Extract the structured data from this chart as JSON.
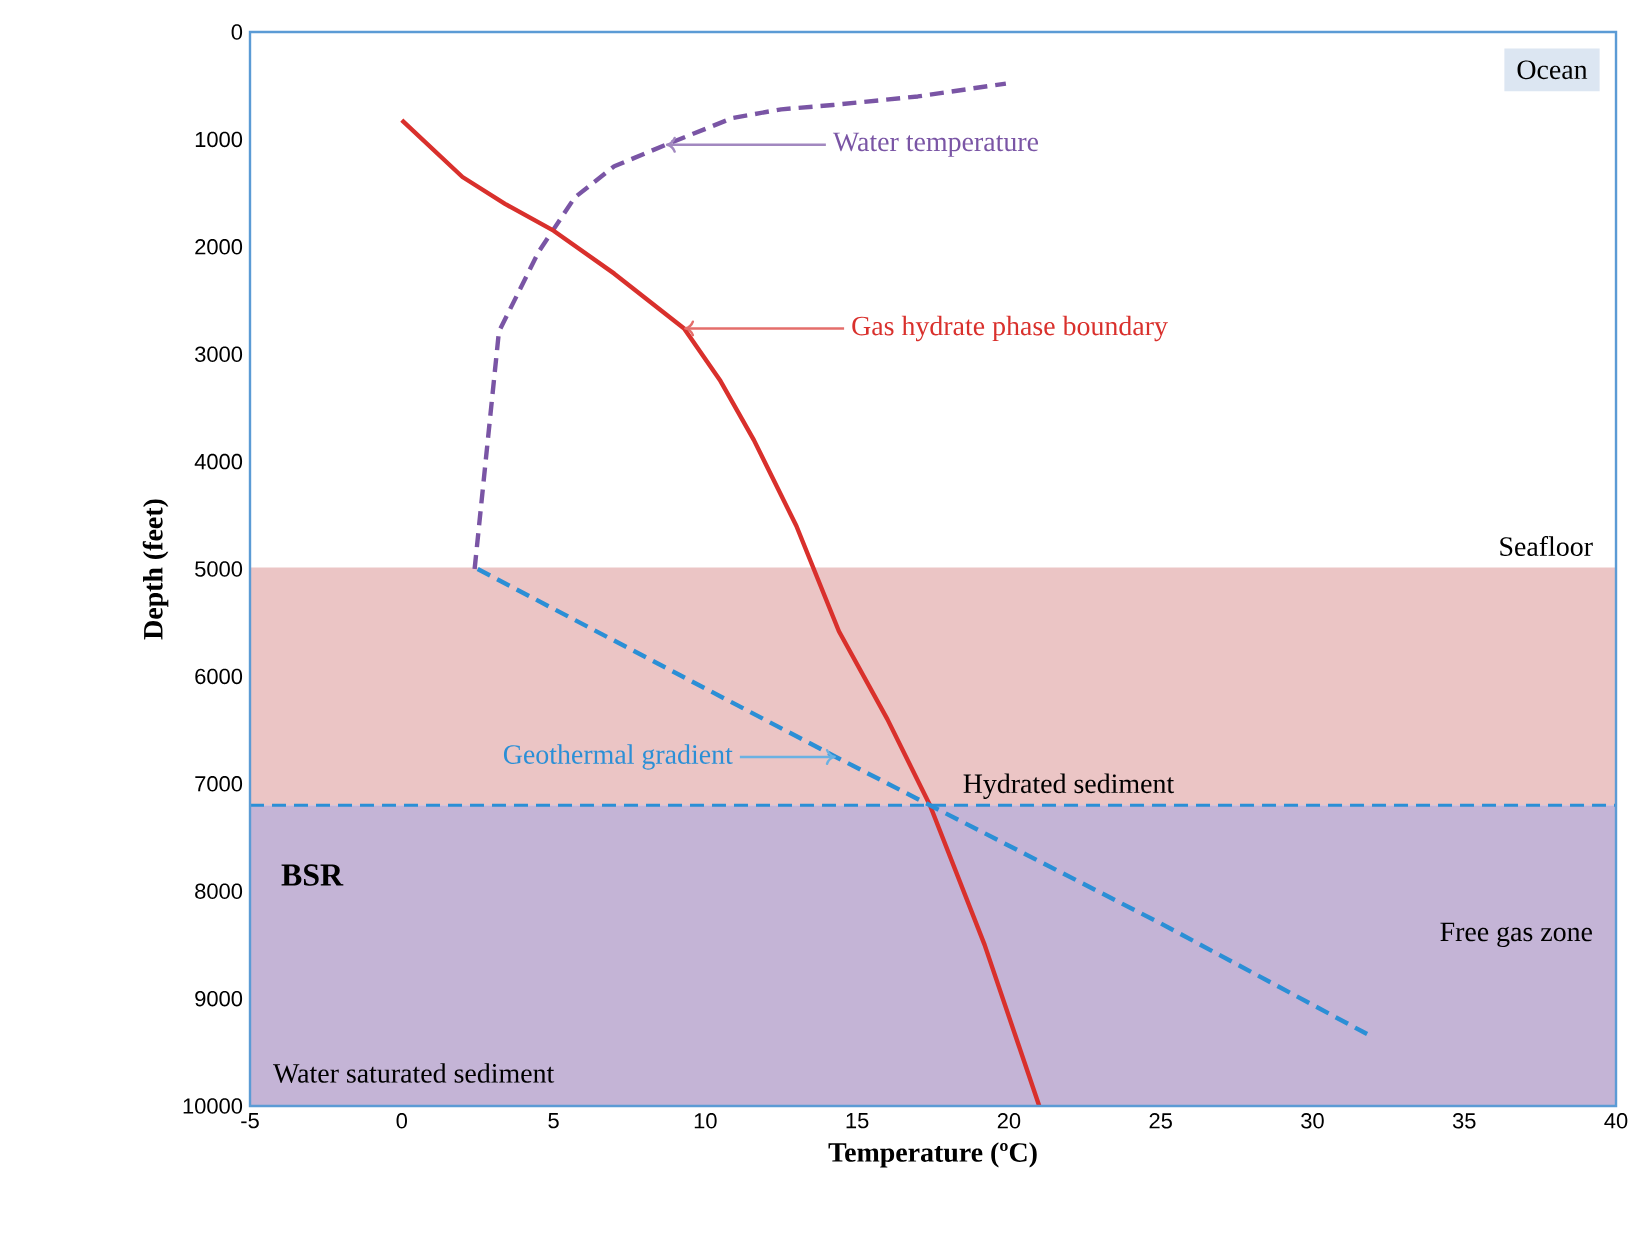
{
  "chart_data": {
    "type": "line",
    "xlabel": "Temperature (ºC)",
    "ylabel": "Depth (feet)",
    "xlim": [
      -5,
      40
    ],
    "ylim": [
      10000,
      0
    ],
    "xticks": [
      -5,
      0,
      5,
      10,
      15,
      20,
      25,
      30,
      35,
      40
    ],
    "yticks": [
      0,
      1000,
      2000,
      3000,
      4000,
      5000,
      6000,
      7000,
      8000,
      9000,
      10000
    ],
    "series": [
      {
        "color": "#7a55a5",
        "line_style": "dashed",
        "x": [
          2.4,
          3.2,
          4.5,
          5.7,
          7.0,
          8.7,
          10.9,
          12.5,
          14.2,
          17.0,
          19.9
        ],
        "values": [
          5000,
          2790,
          2050,
          1540,
          1250,
          1050,
          800,
          720,
          680,
          600,
          480
        ]
      },
      {
        "color": "#d9302c",
        "line_style": "solid",
        "x": [
          0,
          2,
          3.4,
          5,
          7,
          9.3,
          10.5,
          11.6,
          13,
          14.4,
          16,
          17.4,
          19.2,
          21
        ],
        "values": [
          820,
          1350,
          1600,
          1850,
          2250,
          2760,
          3250,
          3800,
          4600,
          5580,
          6400,
          7200,
          8500,
          10000
        ]
      },
      {
        "color": "#2b8fd6",
        "line_style": "dashed",
        "x": [
          2.5,
          14.3,
          17.4,
          25,
          31.8
        ],
        "values": [
          5000,
          6750,
          7200,
          8300,
          9330
        ]
      }
    ],
    "bands": [
      {
        "axis": "y",
        "from": 5000,
        "to": 7200,
        "label": "Hydrated sediment",
        "color": "#ebc5c5"
      },
      {
        "axis": "y",
        "from": 7200,
        "to": 10000,
        "label": "Free gas zone",
        "color": "#c4b4d6"
      }
    ],
    "ref_lines": [
      {
        "axis": "y",
        "value": 5000,
        "label": "Seafloor",
        "color": "#ebc5c5",
        "line_style": "solid"
      },
      {
        "axis": "y",
        "value": 7200,
        "label": "BSR",
        "color": "#2b8fd6",
        "line_style": "dashed"
      }
    ],
    "annotations": [
      {
        "text": "Water temperature",
        "x": 8.7,
        "y": 1050
      },
      {
        "text": "Gas hydrate phase boundary",
        "x": 9.3,
        "y": 2760
      },
      {
        "text": "Geothermal gradient",
        "x": 14.3,
        "y": 6750
      },
      "Ocean",
      "Water saturated sediment"
    ],
    "grid": false,
    "marker": "none"
  }
}
